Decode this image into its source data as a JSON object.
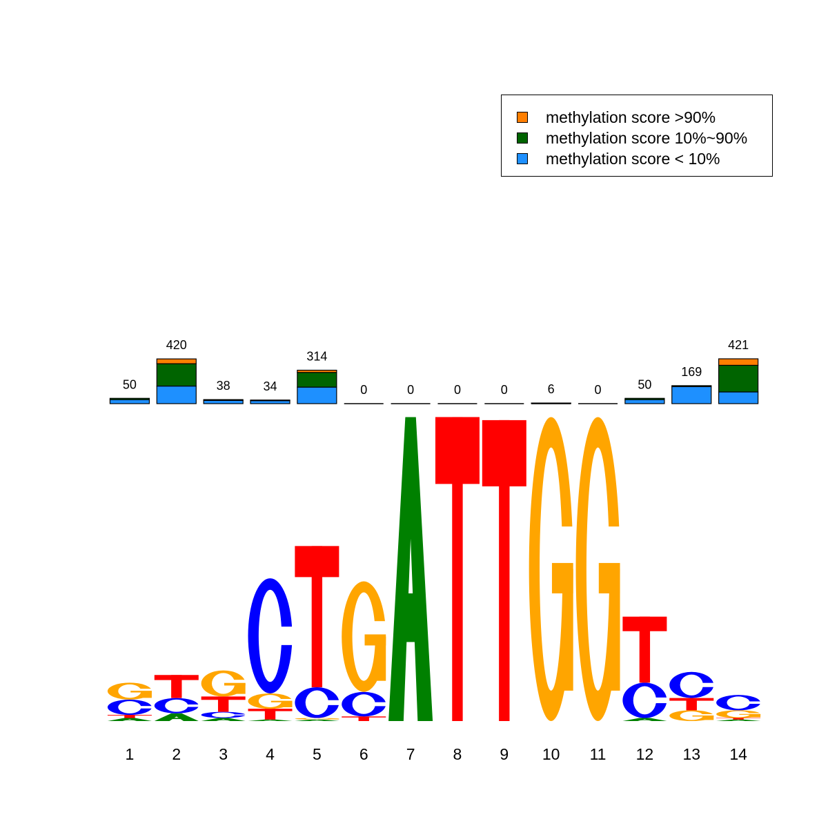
{
  "chart_data": {
    "type": "sequence-logo-with-stacked-bar",
    "title": "",
    "xlabel": "",
    "ylabel": "",
    "grid": false,
    "legend_placement": "top-right",
    "positions": [
      "1",
      "2",
      "3",
      "4",
      "5",
      "6",
      "7",
      "8",
      "9",
      "10",
      "11",
      "12",
      "13",
      "14"
    ],
    "bar_series": [
      {
        "name": "methylation score < 10%",
        "color": "#1e90ff",
        "values": [
          38,
          165,
          30,
          28,
          155,
          0,
          0,
          0,
          0,
          4,
          0,
          38,
          160,
          110
        ]
      },
      {
        "name": "methylation score 10%~90%",
        "color": "#006400",
        "values": [
          12,
          210,
          8,
          6,
          138,
          0,
          0,
          0,
          0,
          2,
          0,
          12,
          9,
          250
        ]
      },
      {
        "name": "methylation score >90%",
        "color": "#ff7f00",
        "values": [
          0,
          45,
          0,
          0,
          21,
          0,
          0,
          0,
          0,
          0,
          0,
          0,
          0,
          61
        ]
      }
    ],
    "bar_totals": [
      "50",
      "420",
      "38",
      "34",
      "314",
      "0",
      "0",
      "0",
      "0",
      "6",
      "0",
      "50",
      "169",
      "421"
    ],
    "bar_max": 421,
    "logo_max_bits": 2,
    "letter_colors": {
      "A": "#008000",
      "C": "#0000ff",
      "G": "#ffa500",
      "T": "#ff0000"
    },
    "logo": [
      [
        {
          "l": "A",
          "h": 0.02
        },
        {
          "l": "T",
          "h": 0.02
        },
        {
          "l": "C",
          "h": 0.1
        },
        {
          "l": "G",
          "h": 0.11
        }
      ],
      [
        {
          "l": "A",
          "h": 0.05
        },
        {
          "l": "C",
          "h": 0.1
        },
        {
          "l": "T",
          "h": 0.15
        }
      ],
      [
        {
          "l": "A",
          "h": 0.02
        },
        {
          "l": "C",
          "h": 0.04
        },
        {
          "l": "T",
          "h": 0.1
        },
        {
          "l": "G",
          "h": 0.17
        }
      ],
      [
        {
          "l": "A",
          "h": 0.01
        },
        {
          "l": "T",
          "h": 0.07
        },
        {
          "l": "G",
          "h": 0.1
        },
        {
          "l": "C",
          "h": 0.75
        }
      ],
      [
        {
          "l": "A",
          "h": 0.01
        },
        {
          "l": "G",
          "h": 0.01
        },
        {
          "l": "C",
          "h": 0.2
        },
        {
          "l": "T",
          "h": 0.92
        }
      ],
      [
        {
          "l": "T",
          "h": 0.03
        },
        {
          "l": "C",
          "h": 0.16
        },
        {
          "l": "G",
          "h": 0.72
        }
      ],
      [
        {
          "l": "A",
          "h": 1.98
        }
      ],
      [
        {
          "l": "T",
          "h": 1.98
        }
      ],
      [
        {
          "l": "T",
          "h": 1.96
        }
      ],
      [
        {
          "l": "G",
          "h": 1.98
        }
      ],
      [
        {
          "l": "G",
          "h": 1.98
        }
      ],
      [
        {
          "l": "A",
          "h": 0.02
        },
        {
          "l": "C",
          "h": 0.23
        },
        {
          "l": "T",
          "h": 0.43
        }
      ],
      [
        {
          "l": "G",
          "h": 0.07
        },
        {
          "l": "T",
          "h": 0.08
        },
        {
          "l": "C",
          "h": 0.17
        }
      ],
      [
        {
          "l": "A",
          "h": 0.01
        },
        {
          "l": "T",
          "h": 0.01
        },
        {
          "l": "G",
          "h": 0.05
        },
        {
          "l": "C",
          "h": 0.1
        }
      ]
    ],
    "legend": [
      {
        "label": "methylation score >90%",
        "color": "#ff7f00"
      },
      {
        "label": "methylation score 10%~90%",
        "color": "#006400"
      },
      {
        "label": "methylation score < 10%",
        "color": "#1e90ff"
      }
    ]
  }
}
